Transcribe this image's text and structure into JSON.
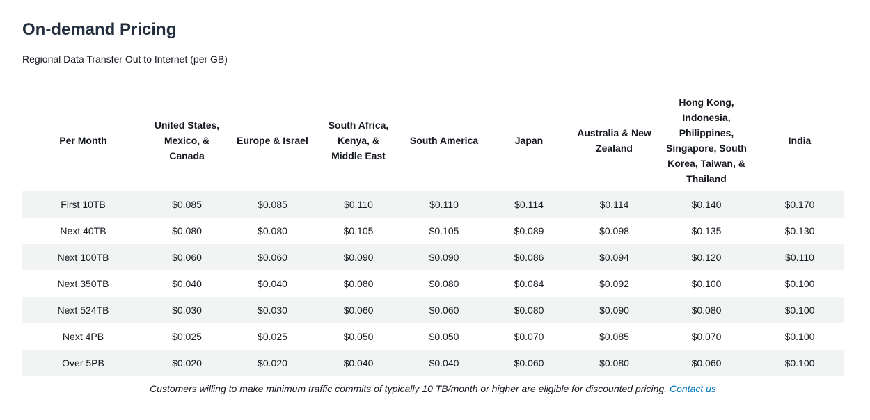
{
  "page": {
    "title": "On-demand Pricing",
    "subtitle": "Regional Data Transfer Out to Internet (per GB)"
  },
  "table": {
    "headers": [
      "Per Month",
      "United States, Mexico, & Canada",
      "Europe & Israel",
      "South Africa, Kenya, & Middle East",
      "South America",
      "Japan",
      "Australia & New Zealand",
      "Hong Kong, Indonesia, Philippines, Singapore, South Korea, Taiwan, & Thailand",
      "India"
    ],
    "rows": [
      [
        "First 10TB",
        "$0.085",
        "$0.085",
        "$0.110",
        "$0.110",
        "$0.114",
        "$0.114",
        "$0.140",
        "$0.170"
      ],
      [
        "Next 40TB",
        "$0.080",
        "$0.080",
        "$0.105",
        "$0.105",
        "$0.089",
        "$0.098",
        "$0.135",
        "$0.130"
      ],
      [
        "Next 100TB",
        "$0.060",
        "$0.060",
        "$0.090",
        "$0.090",
        "$0.086",
        "$0.094",
        "$0.120",
        "$0.110"
      ],
      [
        "Next 350TB",
        "$0.040",
        "$0.040",
        "$0.080",
        "$0.080",
        "$0.084",
        "$0.092",
        "$0.100",
        "$0.100"
      ],
      [
        "Next 524TB",
        "$0.030",
        "$0.030",
        "$0.060",
        "$0.060",
        "$0.080",
        "$0.090",
        "$0.080",
        "$0.100"
      ],
      [
        "Next 4PB",
        "$0.025",
        "$0.025",
        "$0.050",
        "$0.050",
        "$0.070",
        "$0.085",
        "$0.070",
        "$0.100"
      ],
      [
        "Over 5PB",
        "$0.020",
        "$0.020",
        "$0.040",
        "$0.040",
        "$0.060",
        "$0.080",
        "$0.060",
        "$0.100"
      ]
    ]
  },
  "footnote": {
    "text": "Customers willing to make minimum traffic commits of typically 10 TB/month or higher are eligible for discounted pricing.",
    "link_label": "Contact us"
  },
  "colors": {
    "title": "#232f3e",
    "stripe": "#f2f3f3",
    "link": "#0073bb",
    "divider": "#d5dbdb"
  }
}
